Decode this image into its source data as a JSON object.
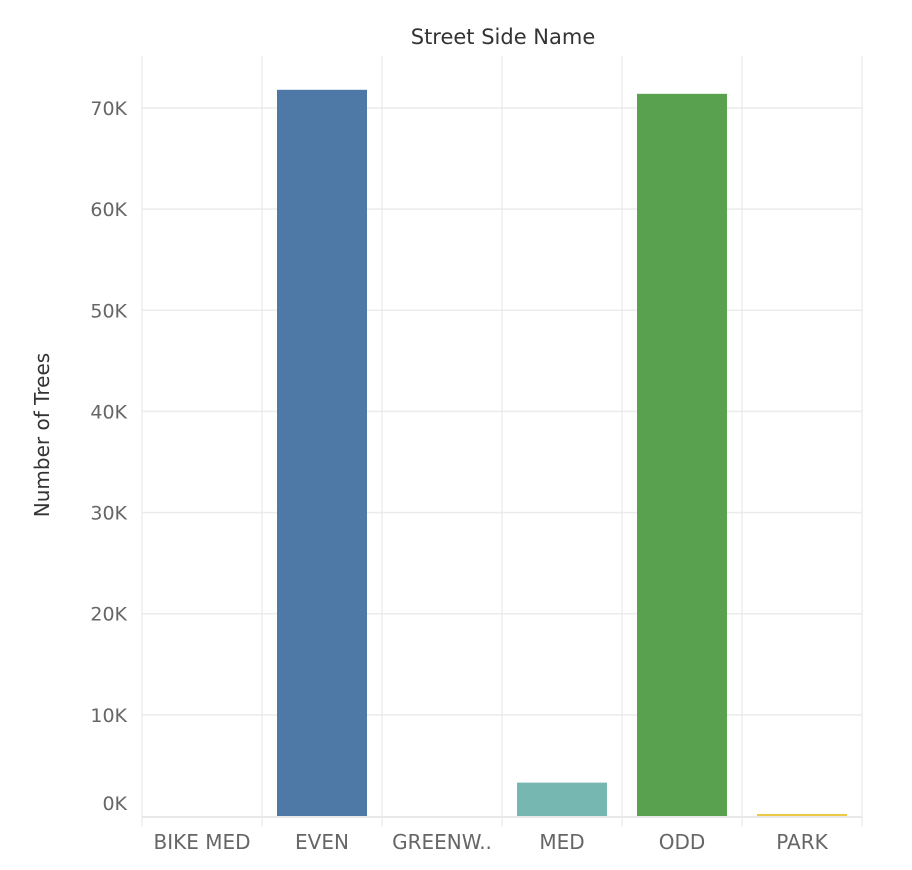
{
  "chart_data": {
    "type": "bar",
    "title": "Street Side Name",
    "xlabel": "",
    "ylabel": "Number of Trees",
    "categories": [
      "BIKE MED",
      "EVEN",
      "GREENW..",
      "MED",
      "ODD",
      "PARK"
    ],
    "values": [
      0,
      71800,
      0,
      3300,
      71400,
      200
    ],
    "colors": [
      "#4e79a7",
      "#4e79a7",
      "#f28e2b",
      "#76b7b2",
      "#59a14f",
      "#edc948"
    ],
    "yticks": [
      0,
      10000,
      20000,
      30000,
      40000,
      50000,
      60000,
      70000
    ],
    "ytick_labels": [
      "0K",
      "10K",
      "20K",
      "30K",
      "40K",
      "50K",
      "60K",
      "70K"
    ],
    "ylim": [
      0,
      70000
    ],
    "grid": true,
    "legend": "none"
  }
}
